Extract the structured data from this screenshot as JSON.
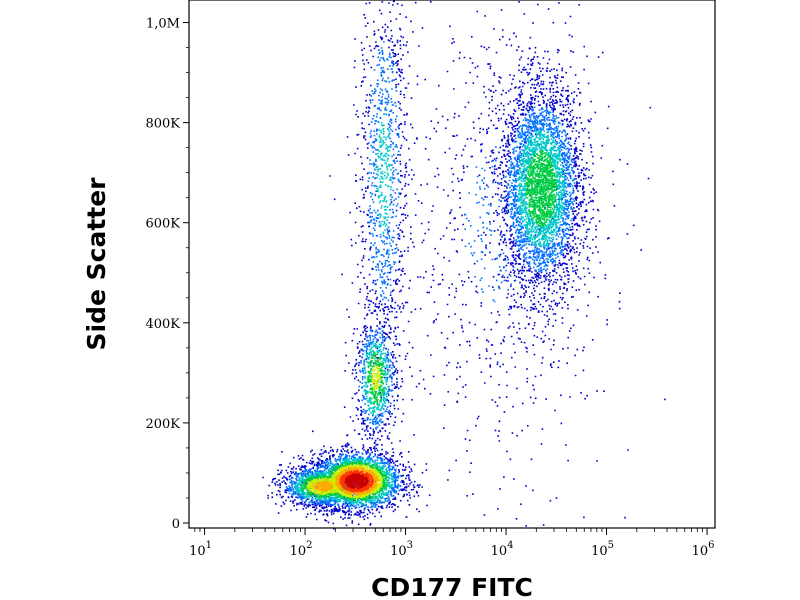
{
  "chart_data": {
    "type": "scatter",
    "title": "",
    "xlabel": "CD177 FITC",
    "ylabel": "Side Scatter",
    "x_scale": "log",
    "xlim": [
      7,
      1200000
    ],
    "ylim": [
      -10000,
      1045000
    ],
    "x_ticks": [
      {
        "value": 10,
        "base": "10",
        "exp": "1"
      },
      {
        "value": 100,
        "base": "10",
        "exp": "2"
      },
      {
        "value": 1000,
        "base": "10",
        "exp": "3"
      },
      {
        "value": 10000,
        "base": "10",
        "exp": "4"
      },
      {
        "value": 100000,
        "base": "10",
        "exp": "5"
      },
      {
        "value": 1000000,
        "base": "10",
        "exp": "6"
      }
    ],
    "y_ticks": [
      {
        "value": 0,
        "label": "0"
      },
      {
        "value": 200000,
        "label": "200K"
      },
      {
        "value": 400000,
        "label": "400K"
      },
      {
        "value": 600000,
        "label": "600K"
      },
      {
        "value": 800000,
        "label": "800K"
      },
      {
        "value": 1000000,
        "label": "1,0M"
      }
    ],
    "grid": false,
    "density_colormap": [
      "#0000cc",
      "#0070ff",
      "#00c8c8",
      "#00cc44",
      "#ccee00",
      "#ffaa00",
      "#ff3300",
      "#cc0000"
    ],
    "populations": [
      {
        "points": 3200,
        "x_center": 320,
        "x_log_sd": 0.22,
        "y_center": 85000,
        "y_sd": 28000,
        "peak_density": 1.0
      },
      {
        "points": 1600,
        "x_center": 150,
        "x_log_sd": 0.2,
        "y_center": 75000,
        "y_sd": 20000,
        "peak_density": 0.7
      },
      {
        "points": 900,
        "x_center": 500,
        "x_log_sd": 0.1,
        "y_center": 290000,
        "y_sd": 60000,
        "peak_density": 0.55
      },
      {
        "points": 1100,
        "x_center": 600,
        "x_log_sd": 0.12,
        "y_center": 700000,
        "y_sd": 200000,
        "peak_density": 0.3
      },
      {
        "points": 4200,
        "x_center": 22000,
        "x_log_sd": 0.2,
        "y_center": 670000,
        "y_sd": 100000,
        "peak_density": 0.5
      },
      {
        "points": 900,
        "x_center": 8000,
        "x_log_sd": 0.55,
        "y_center": 600000,
        "y_sd": 260000,
        "peak_density": 0.15
      }
    ]
  }
}
